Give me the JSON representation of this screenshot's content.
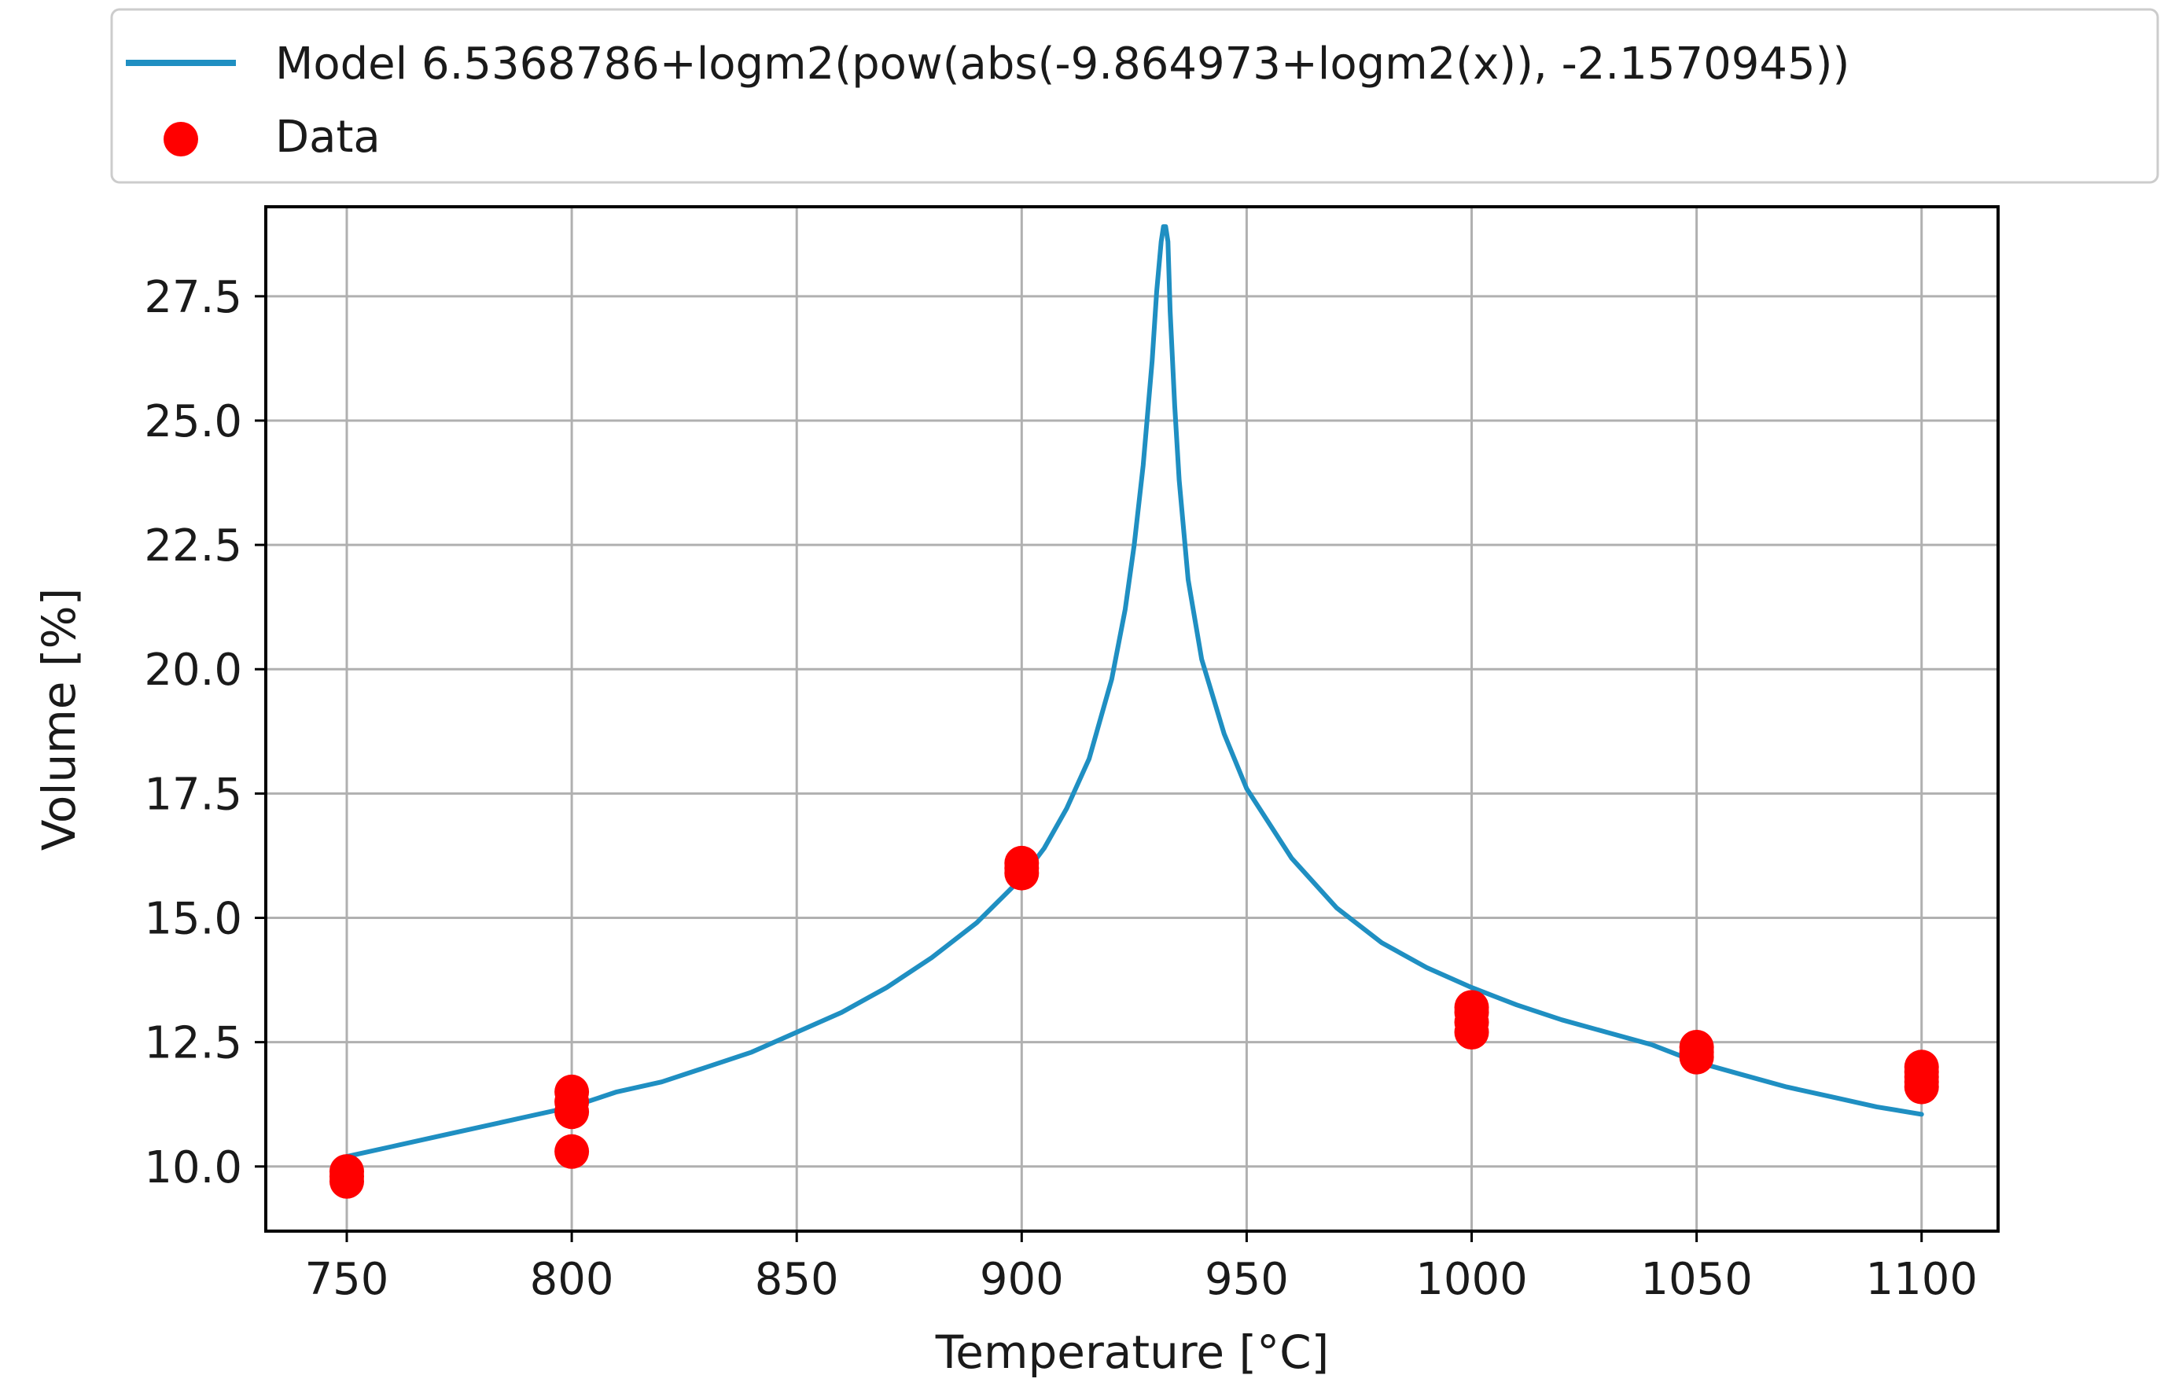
{
  "chart_data": {
    "type": "scatter",
    "xlabel": "Temperature [°C]",
    "ylabel": "Volume [%]",
    "xlim": [
      732,
      1117
    ],
    "ylim": [
      8.7,
      29.3
    ],
    "x_ticks": [
      750,
      800,
      850,
      900,
      950,
      1000,
      1050,
      1100
    ],
    "y_ticks": [
      10.0,
      12.5,
      15.0,
      17.5,
      20.0,
      22.5,
      25.0,
      27.5
    ],
    "x_tick_labels": [
      "750",
      "800",
      "850",
      "900",
      "950",
      "1000",
      "1050",
      "1100"
    ],
    "y_tick_labels": [
      "10.0",
      "12.5",
      "15.0",
      "17.5",
      "20.0",
      "22.5",
      "25.0",
      "27.5"
    ],
    "grid": true,
    "legend_position": "top",
    "series": [
      {
        "name": "Model 6.5368786+logm2(pow(abs(-9.864973+logm2(x)), -2.1570945))",
        "kind": "line",
        "color": "#1f8fc2",
        "x": [
          750,
          760,
          770,
          780,
          790,
          800,
          810,
          820,
          830,
          840,
          850,
          860,
          870,
          880,
          890,
          900,
          905,
          910,
          915,
          920,
          923,
          925,
          927,
          929,
          930,
          931,
          931.5,
          932,
          932.5,
          933,
          934,
          935,
          937,
          940,
          945,
          950,
          960,
          970,
          980,
          990,
          1000,
          1010,
          1020,
          1030,
          1040,
          1050,
          1060,
          1070,
          1080,
          1090,
          1100
        ],
        "y": [
          10.2,
          10.4,
          10.6,
          10.8,
          11.0,
          11.2,
          11.5,
          11.7,
          12.0,
          12.3,
          12.7,
          13.1,
          13.6,
          14.2,
          14.9,
          15.8,
          16.4,
          17.2,
          18.2,
          19.8,
          21.2,
          22.5,
          24.1,
          26.2,
          27.6,
          28.6,
          28.9,
          28.9,
          28.6,
          27.2,
          25.3,
          23.8,
          21.8,
          20.2,
          18.7,
          17.6,
          16.2,
          15.2,
          14.5,
          14.0,
          13.6,
          13.25,
          12.95,
          12.7,
          12.45,
          12.1,
          11.85,
          11.6,
          11.4,
          11.2,
          11.05
        ]
      },
      {
        "name": "Data",
        "kind": "scatter",
        "color": "#ff0000",
        "x": [
          750,
          750,
          750,
          800,
          800,
          800,
          800,
          900,
          900,
          900,
          1000,
          1000,
          1000,
          1000,
          1050,
          1050,
          1050,
          1100,
          1100,
          1100,
          1100,
          1100
        ],
        "y": [
          9.7,
          9.8,
          9.9,
          10.3,
          11.1,
          11.3,
          11.5,
          15.9,
          16.0,
          16.1,
          12.7,
          12.9,
          13.1,
          13.2,
          12.2,
          12.3,
          12.4,
          11.6,
          11.7,
          11.8,
          11.9,
          12.0
        ]
      }
    ]
  }
}
